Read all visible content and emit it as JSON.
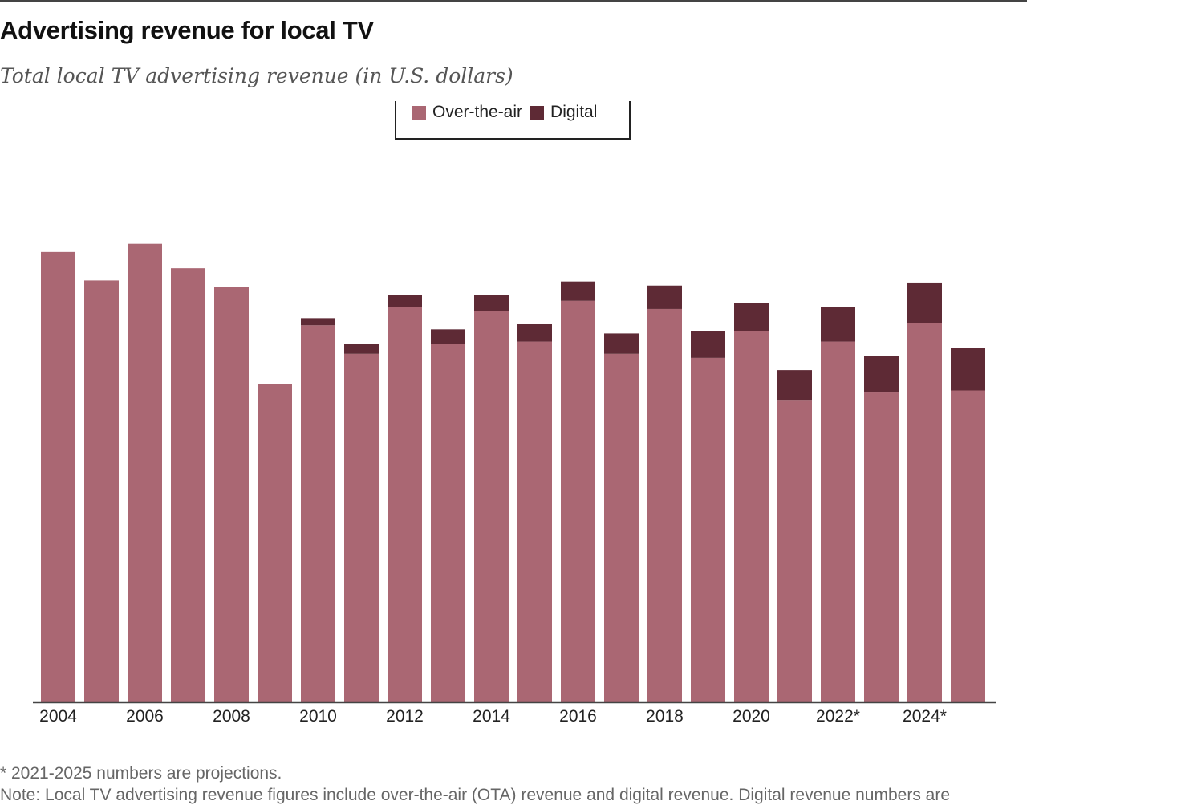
{
  "title": "Advertising revenue for local TV",
  "subtitle": "Total local TV advertising revenue (in U.S. dollars)",
  "legend": {
    "items": [
      {
        "label": "Over-the-air",
        "color": "#aa6773"
      },
      {
        "label": "Digital",
        "color": "#5e2a35"
      }
    ]
  },
  "footnote": "* 2021-2025 numbers are projections.",
  "note": "Note: Local TV advertising revenue figures include over-the-air (OTA) revenue and digital revenue. Digital revenue numbers are",
  "colors": {
    "ota": "#aa6773",
    "digital": "#5e2a35",
    "axis": "#444444",
    "tick_label": "#222222"
  },
  "chart_data": {
    "type": "bar",
    "stacked": true,
    "title": "Advertising revenue for local TV",
    "subtitle": "Total local TV advertising revenue (in U.S. dollars)",
    "xlabel": "",
    "ylabel": "",
    "units": "billions of U.S. dollars (estimated; no y-axis labels shown)",
    "grid": false,
    "legend_position": "top-center",
    "categories": [
      "2004",
      "2005",
      "2006",
      "2007",
      "2008",
      "2009",
      "2010",
      "2011",
      "2012",
      "2013",
      "2014",
      "2015",
      "2016",
      "2017",
      "2018",
      "2019",
      "2020",
      "2021",
      "2022",
      "2023",
      "2024",
      "2025"
    ],
    "tick_labels": [
      "2004",
      "",
      "2006",
      "",
      "2008",
      "",
      "2010",
      "",
      "2012",
      "",
      "2014",
      "",
      "2016",
      "",
      "2018",
      "",
      "2020",
      "",
      "2022*",
      "",
      "2024*",
      ""
    ],
    "ylim": [
      0,
      23
    ],
    "series": [
      {
        "name": "Over-the-air",
        "values": [
          22.1,
          20.7,
          22.5,
          21.3,
          20.4,
          15.6,
          18.5,
          17.1,
          19.4,
          17.6,
          19.2,
          17.7,
          19.7,
          17.1,
          19.3,
          16.9,
          18.2,
          14.8,
          17.7,
          15.2,
          18.6,
          15.3
        ]
      },
      {
        "name": "Digital",
        "values": [
          0,
          0,
          0,
          0,
          0,
          0,
          0.35,
          0.5,
          0.6,
          0.7,
          0.8,
          0.85,
          0.95,
          1.0,
          1.15,
          1.3,
          1.4,
          1.5,
          1.7,
          1.8,
          2.0,
          2.1
        ]
      }
    ]
  }
}
